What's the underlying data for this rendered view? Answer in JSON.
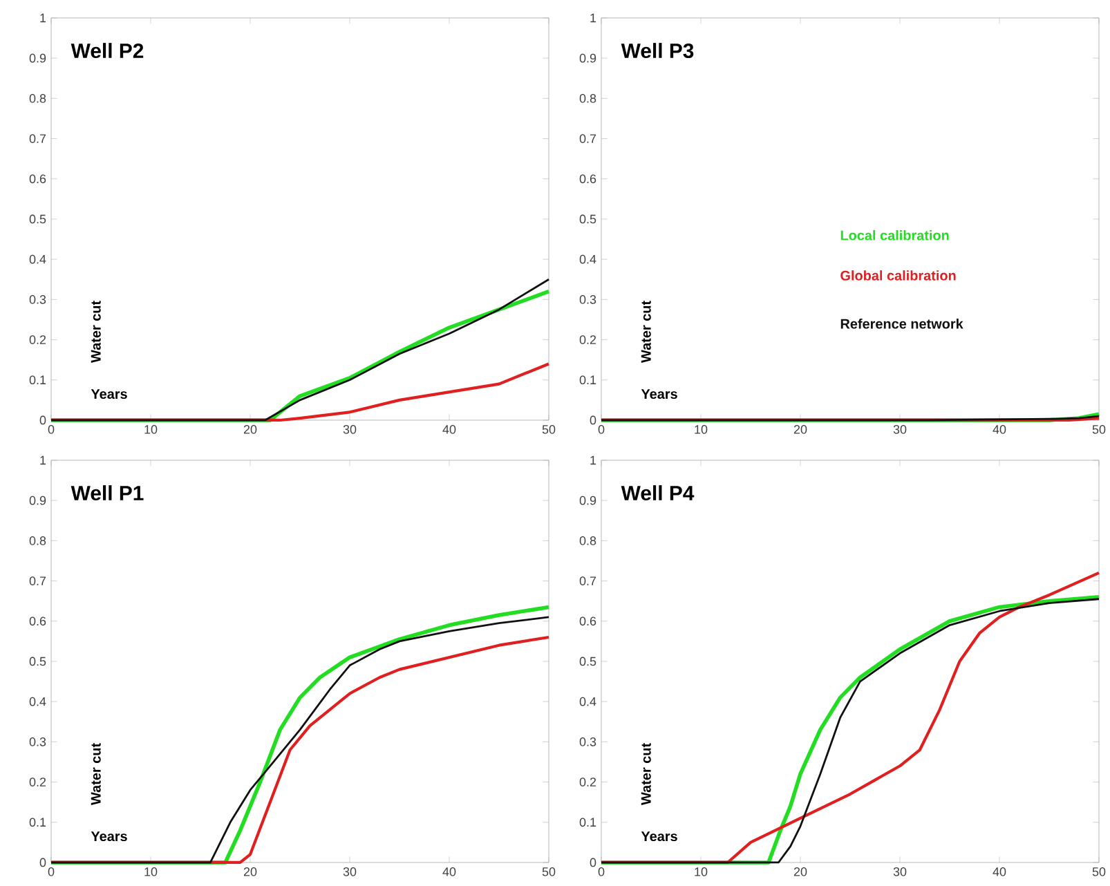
{
  "chart_data": [
    {
      "type": "line",
      "title": "Well P2",
      "xlabel": "Years",
      "ylabel": "Water cut",
      "xlim": [
        0,
        50
      ],
      "ylim": [
        0,
        1
      ],
      "xticks": [
        0,
        10,
        20,
        30,
        40,
        50
      ],
      "yticks": [
        0,
        0.1,
        0.2,
        0.3,
        0.4,
        0.5,
        0.6,
        0.7,
        0.8,
        0.9,
        1
      ],
      "grid": false,
      "legend": false,
      "series": [
        {
          "color": "#22dd22",
          "x": [
            0,
            22,
            25,
            30,
            35,
            40,
            45,
            50
          ],
          "values": [
            0,
            0,
            0.06,
            0.105,
            0.17,
            0.23,
            0.275,
            0.32
          ]
        },
        {
          "color": "#e02020",
          "x": [
            0,
            23,
            25,
            30,
            35,
            40,
            45,
            50
          ],
          "values": [
            0,
            0,
            0.005,
            0.02,
            0.05,
            0.07,
            0.09,
            0.14
          ]
        },
        {
          "color": "#111111",
          "x": [
            0,
            21.5,
            25,
            30,
            35,
            40,
            45,
            50
          ],
          "values": [
            0,
            0,
            0.05,
            0.1,
            0.165,
            0.215,
            0.275,
            0.35
          ]
        }
      ]
    },
    {
      "type": "line",
      "title": "Well P3",
      "xlabel": "Years",
      "ylabel": "Water cut",
      "xlim": [
        0,
        50
      ],
      "ylim": [
        0,
        1
      ],
      "xticks": [
        0,
        10,
        20,
        30,
        40,
        50
      ],
      "yticks": [
        0,
        0.1,
        0.2,
        0.3,
        0.4,
        0.5,
        0.6,
        0.7,
        0.8,
        0.9,
        1
      ],
      "grid": false,
      "legend": "right",
      "series": [
        {
          "name": "Local calibration",
          "color": "#22dd22",
          "x": [
            0,
            45,
            48,
            50
          ],
          "values": [
            0,
            0,
            0.005,
            0.015
          ]
        },
        {
          "name": "Global calibration",
          "color": "#e02020",
          "x": [
            0,
            47,
            50
          ],
          "values": [
            0,
            0,
            0.005
          ]
        },
        {
          "name": "Reference network",
          "color": "#111111",
          "x": [
            0,
            33,
            45,
            48,
            50
          ],
          "values": [
            0,
            0,
            0.003,
            0.005,
            0.01
          ]
        }
      ]
    },
    {
      "type": "line",
      "title": "Well P1",
      "xlabel": "Years",
      "ylabel": "Water cut",
      "xlim": [
        0,
        50
      ],
      "ylim": [
        0,
        1
      ],
      "xticks": [
        0,
        10,
        20,
        30,
        40,
        50
      ],
      "yticks": [
        0,
        0.1,
        0.2,
        0.3,
        0.4,
        0.5,
        0.6,
        0.7,
        0.8,
        0.9,
        1
      ],
      "grid": false,
      "legend": false,
      "series": [
        {
          "color": "#22dd22",
          "x": [
            0,
            17.5,
            19,
            21,
            23,
            25,
            27,
            30,
            35,
            40,
            45,
            50
          ],
          "values": [
            0,
            0,
            0.08,
            0.2,
            0.33,
            0.41,
            0.46,
            0.51,
            0.555,
            0.59,
            0.615,
            0.635
          ]
        },
        {
          "color": "#e02020",
          "x": [
            0,
            19,
            20,
            22,
            24,
            26,
            28,
            30,
            33,
            35,
            40,
            45,
            50
          ],
          "values": [
            0,
            0,
            0.02,
            0.15,
            0.28,
            0.34,
            0.38,
            0.42,
            0.46,
            0.48,
            0.51,
            0.54,
            0.56
          ]
        },
        {
          "color": "#111111",
          "x": [
            0,
            16,
            18,
            20,
            22,
            25,
            28,
            30,
            33,
            35,
            40,
            45,
            50
          ],
          "values": [
            0,
            0,
            0.1,
            0.18,
            0.24,
            0.33,
            0.43,
            0.49,
            0.53,
            0.55,
            0.575,
            0.595,
            0.61
          ]
        }
      ]
    },
    {
      "type": "line",
      "title": "Well P4",
      "xlabel": "Years",
      "ylabel": "Water cut",
      "xlim": [
        0,
        50
      ],
      "ylim": [
        0,
        1
      ],
      "xticks": [
        0,
        10,
        20,
        30,
        40,
        50
      ],
      "yticks": [
        0,
        0.1,
        0.2,
        0.3,
        0.4,
        0.5,
        0.6,
        0.7,
        0.8,
        0.9,
        1
      ],
      "grid": false,
      "legend": false,
      "series": [
        {
          "color": "#22dd22",
          "x": [
            0,
            16.8,
            18,
            19,
            20,
            22,
            24,
            26,
            30,
            35,
            40,
            45,
            50
          ],
          "values": [
            0,
            0,
            0.08,
            0.14,
            0.22,
            0.33,
            0.41,
            0.46,
            0.53,
            0.6,
            0.635,
            0.65,
            0.66
          ]
        },
        {
          "color": "#e02020",
          "x": [
            0,
            12.7,
            15,
            20,
            25,
            30,
            32,
            34,
            36,
            38,
            40,
            42,
            45,
            50
          ],
          "values": [
            0,
            0,
            0.05,
            0.11,
            0.17,
            0.24,
            0.28,
            0.38,
            0.5,
            0.57,
            0.61,
            0.635,
            0.665,
            0.72
          ]
        },
        {
          "color": "#111111",
          "x": [
            0,
            17.8,
            19,
            20,
            22,
            24,
            26,
            30,
            35,
            40,
            45,
            50
          ],
          "values": [
            0,
            0,
            0.04,
            0.09,
            0.22,
            0.36,
            0.45,
            0.52,
            0.59,
            0.625,
            0.645,
            0.655
          ]
        }
      ]
    }
  ]
}
